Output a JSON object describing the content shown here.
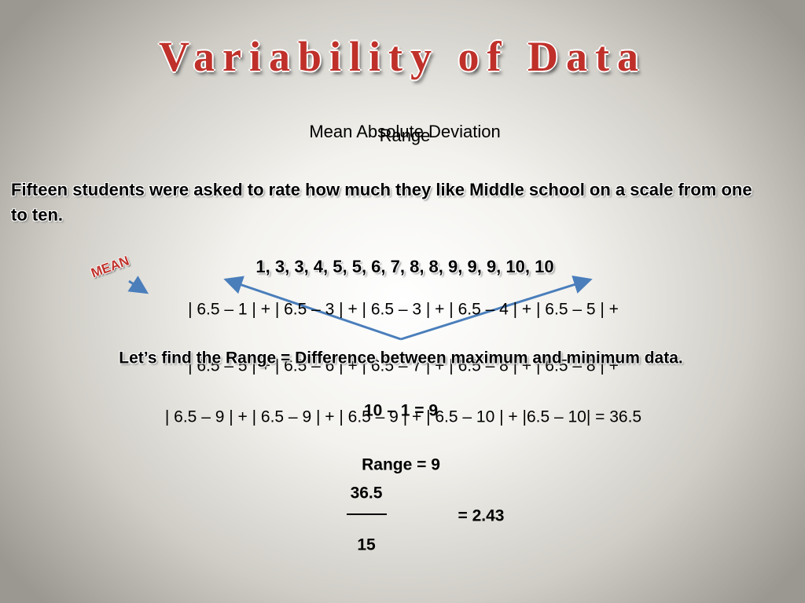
{
  "slide": {
    "title": "Variability of Data",
    "mad_heading": "Mean Absolute Deviation",
    "range_heading": "Range",
    "problem": "Fifteen students were asked to rate how much they like Middle school on a scale from one to ten.",
    "mean_tag": "MEAN",
    "data_list": "1,  3,  3,  4,  5,  5,  6,  7,  8,  8,  9,  9,  9,  10,  10",
    "mad_lines": [
      "| 6.5 – 1 | + | 6.5 – 3 | + | 6.5 – 3 | + | 6.5 – 4 | + | 6.5 – 5 | +",
      "| 6.5 – 5 | + | 6.5 – 6 | + | 6.5 – 7 | + | 6.5 – 8 | + | 6.5 – 8 | +",
      "| 6.5 – 9 | + | 6.5 – 9 | + | 6.5 – 9 | + | 6.5 – 10 | + |6.5 – 10| = 36.5"
    ],
    "range_instruction": "Let’s find the Range = Difference between maximum and minimum data.",
    "range_calc": "10 – 1 = 9",
    "range_result": "Range = 9",
    "numerator": "36.5",
    "denominator": "15",
    "mad_result": "= 2.43"
  }
}
